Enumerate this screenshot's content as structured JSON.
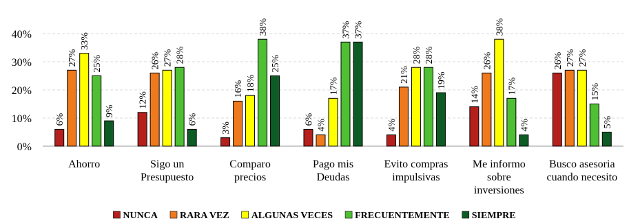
{
  "chart_data": {
    "type": "bar",
    "title": "",
    "xlabel": "",
    "ylabel": "",
    "ylim": [
      0,
      40
    ],
    "yticks": [
      "0%",
      "10%",
      "20%",
      "30%",
      "40%"
    ],
    "grid": true,
    "legend_position": "bottom",
    "categories": [
      [
        "Ahorro"
      ],
      [
        "Sigo un",
        "Presupuesto"
      ],
      [
        "Comparo",
        "precios"
      ],
      [
        "Pago mis",
        "Deudas"
      ],
      [
        "Evito compras",
        "impulsivas"
      ],
      [
        "Me informo",
        "sobre",
        "inversiones"
      ],
      [
        "Busco asesoria",
        "cuando necesito"
      ]
    ],
    "series": [
      {
        "name": "NUNCA",
        "color": "#b5201c",
        "values": [
          6,
          12,
          3,
          6,
          4,
          14,
          26
        ],
        "labels": [
          "6%",
          "12%",
          "3%",
          "6%",
          "4%",
          "14%",
          "26%"
        ]
      },
      {
        "name": "RARA VEZ",
        "color": "#ef7a1e",
        "values": [
          27,
          26,
          16,
          4,
          21,
          26,
          27
        ],
        "labels": [
          "27%",
          "26%",
          "16%",
          "4%",
          "21%",
          "26%",
          "27%"
        ]
      },
      {
        "name": "ALGUNAS VECES",
        "color": "#ffff00",
        "values": [
          33,
          27,
          18,
          17,
          28,
          38,
          27
        ],
        "labels": [
          "33%",
          "27%",
          "18%",
          "17%",
          "28%",
          "38%",
          "27%"
        ]
      },
      {
        "name": "FRECUENTEMENTE",
        "color": "#4fc034",
        "values": [
          25,
          28,
          38,
          37,
          28,
          17,
          15
        ],
        "labels": [
          "25%",
          "28%",
          "38%",
          "37%",
          "28%",
          "17%",
          "15%"
        ]
      },
      {
        "name": "SIEMPRE",
        "color": "#0d5c25",
        "values": [
          9,
          6,
          25,
          37,
          19,
          4,
          5
        ],
        "labels": [
          "9%",
          "6%",
          "25%",
          "37%",
          "19%",
          "4%",
          "5%"
        ]
      }
    ]
  }
}
